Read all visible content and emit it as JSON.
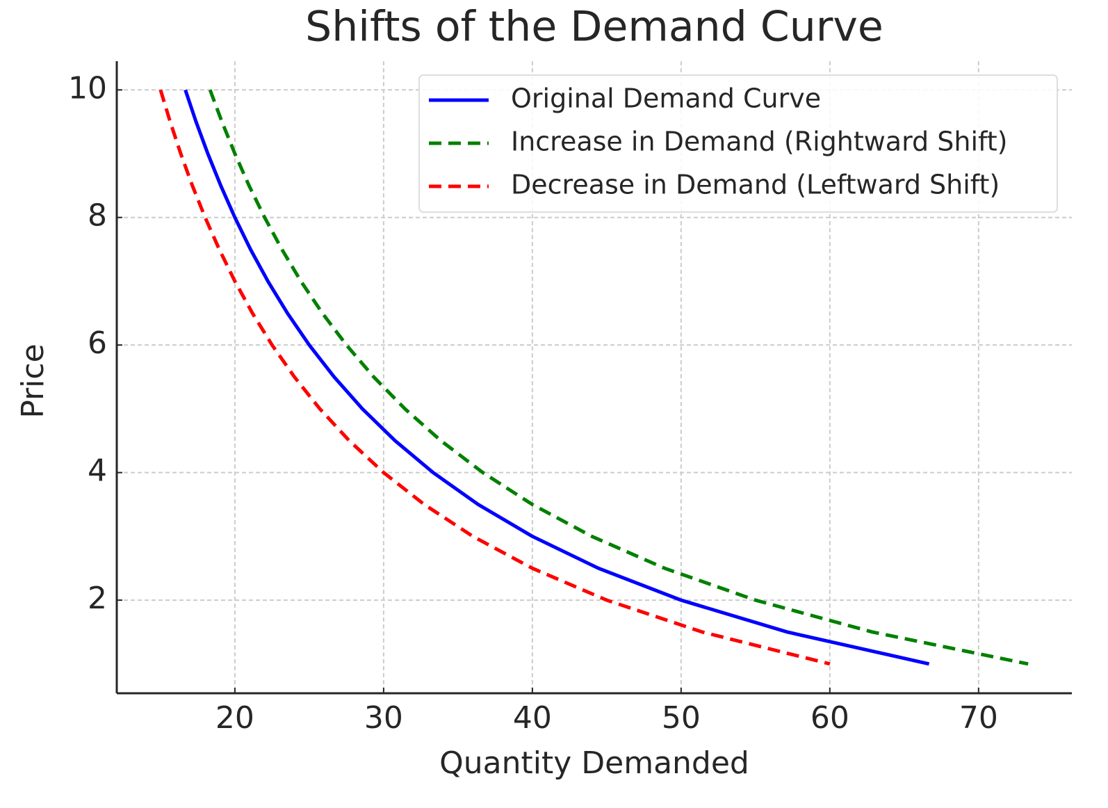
{
  "chart_data": {
    "type": "line",
    "title": "Shifts of the Demand Curve",
    "x_label": "Quantity Demanded",
    "y_label": "Price",
    "xlim": [
      12.06,
      76.27
    ],
    "ylim": [
      0.54,
      10.45
    ],
    "xticks": [
      20,
      30,
      40,
      50,
      60,
      70
    ],
    "yticks": [
      2,
      4,
      6,
      8,
      10
    ],
    "grid": true,
    "legend": "upper right",
    "series": [
      {
        "name": "Original Demand Curve",
        "color": "#0000ff",
        "linestyle": "solid",
        "x": [
          16.67,
          17.39,
          18.18,
          19.05,
          20,
          21.05,
          22.22,
          23.53,
          25,
          26.67,
          28.57,
          30.77,
          33.33,
          36.36,
          40,
          44.44,
          50,
          57.14,
          66.67
        ],
        "values": [
          10,
          9.5,
          9,
          8.5,
          8,
          7.5,
          7,
          6.5,
          6,
          5.5,
          5,
          4.5,
          4,
          3.5,
          3,
          2.5,
          2,
          1.5,
          1
        ]
      },
      {
        "name": "Increase in Demand (Rightward Shift)",
        "color": "#008000",
        "linestyle": "dashed",
        "x": [
          18.33,
          19.13,
          20,
          20.95,
          22,
          23.16,
          24.44,
          25.88,
          27.5,
          29.33,
          31.43,
          33.85,
          36.67,
          40,
          44,
          48.89,
          55,
          62.86,
          73.33
        ],
        "values": [
          10,
          9.5,
          9,
          8.5,
          8,
          7.5,
          7,
          6.5,
          6,
          5.5,
          5,
          4.5,
          4,
          3.5,
          3,
          2.5,
          2,
          1.5,
          1
        ]
      },
      {
        "name": "Decrease in Demand (Leftward Shift)",
        "color": "#ff0000",
        "linestyle": "dashed",
        "x": [
          15,
          15.65,
          16.36,
          17.14,
          18,
          18.95,
          20,
          21.18,
          22.5,
          24,
          25.71,
          27.69,
          30,
          32.73,
          36,
          40,
          45,
          51.43,
          60
        ],
        "values": [
          10,
          9.5,
          9,
          8.5,
          8,
          7.5,
          7,
          6.5,
          6,
          5.5,
          5,
          4.5,
          4,
          3.5,
          3,
          2.5,
          2,
          1.5,
          1
        ]
      }
    ]
  }
}
